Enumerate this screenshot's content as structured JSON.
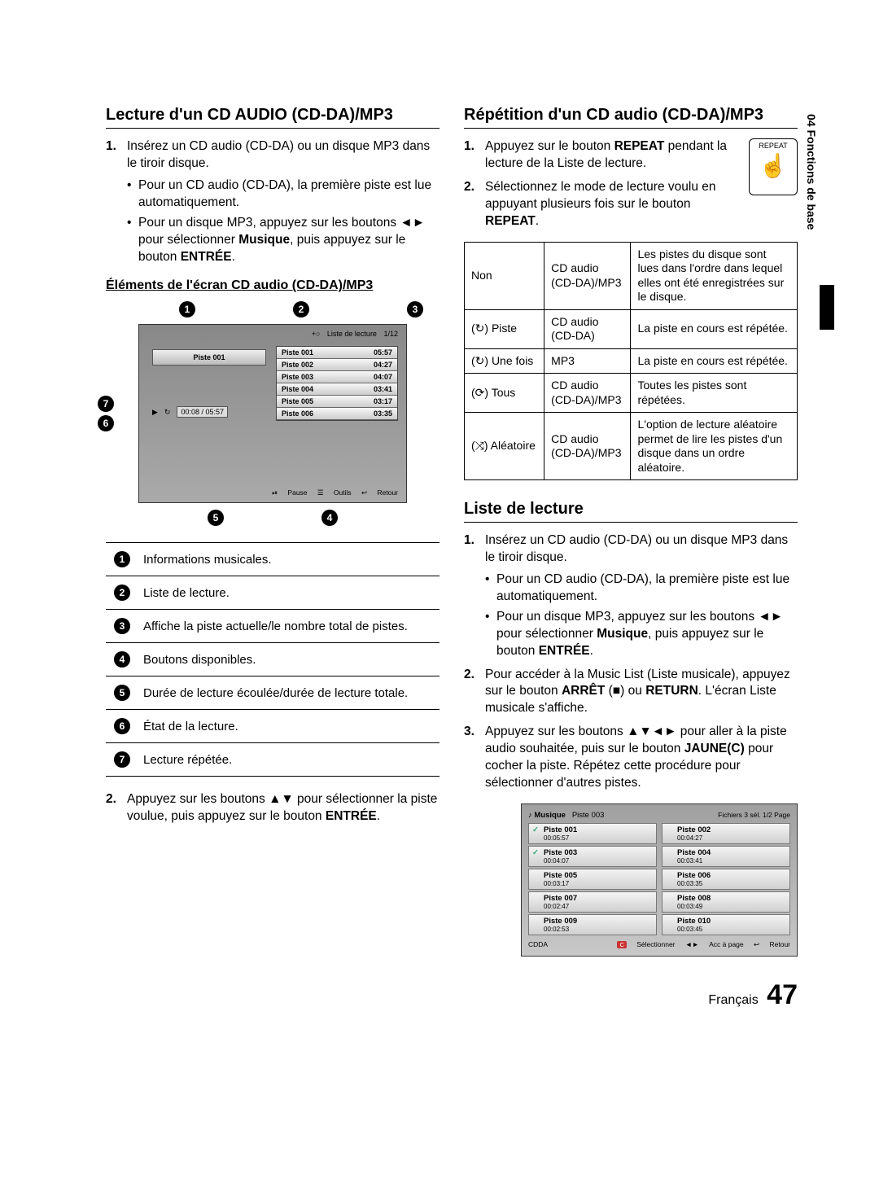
{
  "sideTab": "04  Fonctions de base",
  "left": {
    "h1": "Lecture d'un CD AUDIO (CD-DA)/MP3",
    "step1": "Insérez un CD audio (CD-DA) ou un disque MP3 dans le tiroir disque.",
    "b1": "Pour un CD audio (CD-DA), la première piste est lue automatiquement.",
    "b2a": "Pour un disque MP3, appuyez sur les boutons ",
    "b2arrows": "◄►",
    "b2b": " pour sélectionner ",
    "b2c": "Musique",
    "b2d": ", puis appuyez sur le bouton ",
    "b2e": "ENTRÉE",
    "b2f": ".",
    "h3": "Éléments de l'écran CD audio (CD-DA)/MP3",
    "screen": {
      "hdrLabel": "Liste de lecture",
      "hdrCount": "1/12",
      "nowPlaying": "Piste 001",
      "time": "00:08 / 05:57",
      "tracks": [
        {
          "t": "Piste 001",
          "d": "05:57"
        },
        {
          "t": "Piste 002",
          "d": "04:27"
        },
        {
          "t": "Piste 003",
          "d": "04:07"
        },
        {
          "t": "Piste 004",
          "d": "03:41"
        },
        {
          "t": "Piste 005",
          "d": "03:17"
        },
        {
          "t": "Piste 006",
          "d": "03:35"
        }
      ],
      "foot": {
        "pause": "Pause",
        "tools": "Outils",
        "ret": "Retour"
      }
    },
    "legend": [
      "Informations musicales.",
      "Liste de lecture.",
      "Affiche la piste actuelle/le nombre total de pistes.",
      "Boutons disponibles.",
      "Durée de lecture écoulée/durée de lecture totale.",
      "État de la lecture.",
      "Lecture répétée."
    ],
    "step2a": "Appuyez sur les boutons ",
    "step2arrows": "▲▼",
    "step2b": " pour sélectionner la piste voulue, puis appuyez sur le bouton ",
    "step2c": "ENTRÉE",
    "step2d": "."
  },
  "right": {
    "h1": "Répétition d'un CD audio (CD-DA)/MP3",
    "repeatIcon": "REPEAT",
    "step1a": "Appuyez sur le bouton ",
    "step1b": "REPEAT",
    "step1c": " pendant la lecture de la Liste de lecture.",
    "step2a": "Sélectionnez le mode de lecture voulu en appuyant plusieurs fois sur le bouton ",
    "step2b": "REPEAT",
    "step2c": ".",
    "table": [
      {
        "a": "Non",
        "b": "CD audio (CD-DA)/MP3",
        "c": "Les pistes du disque sont lues dans l'ordre dans lequel elles ont été enregistrées sur le disque."
      },
      {
        "a": "(↻) Piste",
        "b": "CD audio (CD-DA)",
        "c": "La piste en cours est répétée."
      },
      {
        "a": "(↻) Une fois",
        "b": "MP3",
        "c": "La piste en cours est répétée."
      },
      {
        "a": "(⟳) Tous",
        "b": "CD audio (CD-DA)/MP3",
        "c": "Toutes les pistes sont répétées."
      },
      {
        "a": "(⤨) Aléatoire",
        "b": "CD audio (CD-DA)/MP3",
        "c": "L'option de lecture aléatoire permet de lire les pistes d'un disque dans un ordre aléatoire."
      }
    ],
    "h2": "Liste de lecture",
    "ll1": "Insérez un CD audio (CD-DA) ou un disque MP3 dans le tiroir disque.",
    "ll1b1": "Pour un CD audio (CD-DA), la première piste est lue automatiquement.",
    "ll1b2a": "Pour un disque MP3, appuyez sur les boutons ",
    "ll1b2arrows": "◄►",
    "ll1b2b": " pour sélectionner ",
    "ll1b2c": "Musique",
    "ll1b2d": ", puis appuyez sur le bouton ",
    "ll1b2e": "ENTRÉE",
    "ll1b2f": ".",
    "ll2a": "Pour accéder à la Music List (Liste musicale), appuyez sur le bouton ",
    "ll2b": "ARRÊT",
    "ll2stop": " (■) ",
    "ll2or": "ou ",
    "ll2c": "RETURN",
    "ll2d": ". L'écran Liste musicale s'affiche.",
    "ll3a": "Appuyez sur les boutons ",
    "ll3arrows": "▲▼◄►",
    "ll3b": " pour aller à la piste audio souhaitée, puis sur le bouton ",
    "ll3c": "JAUNE(C)",
    "ll3d": " pour cocher la piste. Répétez cette procédure pour sélectionner d'autres pistes.",
    "screen2": {
      "title": "Musique",
      "np": "Piste 003",
      "right": "Fichiers 3 sél.   1/2 Page",
      "rows": [
        {
          "t": "Piste 001",
          "d": "00:05:57",
          "chk": true
        },
        {
          "t": "Piste 002",
          "d": "00:04:27",
          "chk": false
        },
        {
          "t": "Piste 003",
          "d": "00:04:07",
          "chk": true
        },
        {
          "t": "Piste 004",
          "d": "00:03:41",
          "chk": false
        },
        {
          "t": "Piste 005",
          "d": "00:03:17",
          "chk": false
        },
        {
          "t": "Piste 006",
          "d": "00:03:35",
          "chk": false
        },
        {
          "t": "Piste 007",
          "d": "00:02:47",
          "chk": false
        },
        {
          "t": "Piste 008",
          "d": "00:03:49",
          "chk": false
        },
        {
          "t": "Piste 009",
          "d": "00:02:53",
          "chk": false
        },
        {
          "t": "Piste 010",
          "d": "00:03:45",
          "chk": false
        }
      ],
      "footL": "CDDA",
      "footSel": "Sélectionner",
      "footPage": "Acc à page",
      "footRet": "Retour"
    }
  },
  "footer": {
    "lang": "Français",
    "page": "47"
  }
}
